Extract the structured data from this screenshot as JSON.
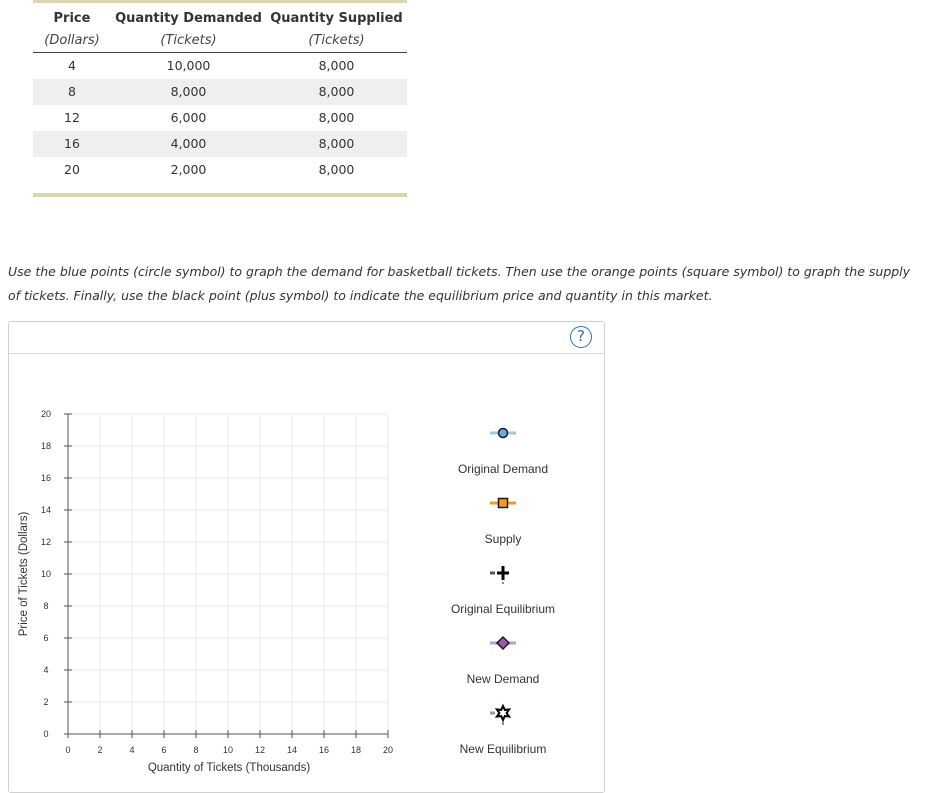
{
  "table": {
    "headers": [
      {
        "title": "Price",
        "unit": "(Dollars)"
      },
      {
        "title": "Quantity Demanded",
        "unit": "(Tickets)"
      },
      {
        "title": "Quantity Supplied",
        "unit": "(Tickets)"
      }
    ],
    "rows": [
      {
        "price": "4",
        "demanded": "10,000",
        "supplied": "8,000"
      },
      {
        "price": "8",
        "demanded": "8,000",
        "supplied": "8,000"
      },
      {
        "price": "12",
        "demanded": "6,000",
        "supplied": "8,000"
      },
      {
        "price": "16",
        "demanded": "4,000",
        "supplied": "8,000"
      },
      {
        "price": "20",
        "demanded": "2,000",
        "supplied": "8,000"
      }
    ]
  },
  "instructions": "Use the blue points (circle symbol) to graph the demand for basketball tickets. Then use the orange points (square symbol) to graph the supply of tickets. Finally, use the black point (plus symbol) to indicate the equilibrium price and quantity in this market.",
  "help_label": "?",
  "graph": {
    "xlabel": "Quantity of Tickets (Thousands)",
    "ylabel": "Price of Tickets (Dollars)",
    "xlim": [
      0,
      20
    ],
    "ylim": [
      0,
      20
    ],
    "x_ticks": [
      "0",
      "2",
      "4",
      "6",
      "8",
      "10",
      "12",
      "14",
      "16",
      "18",
      "20"
    ],
    "y_ticks": [
      "0",
      "2",
      "4",
      "6",
      "8",
      "10",
      "12",
      "14",
      "16",
      "18",
      "20"
    ],
    "grid": true
  },
  "legend": [
    {
      "label": "Original Demand",
      "symbol": "circle",
      "color": "#6fa8dc"
    },
    {
      "label": "Supply",
      "symbol": "square",
      "color": "#f29b1d"
    },
    {
      "label": "Original Equilibrium",
      "symbol": "plus",
      "color": "#000000"
    },
    {
      "label": "New Demand",
      "symbol": "diamond",
      "color": "#9b59b6"
    },
    {
      "label": "New Equilibrium",
      "symbol": "star",
      "color": "#000000"
    }
  ]
}
